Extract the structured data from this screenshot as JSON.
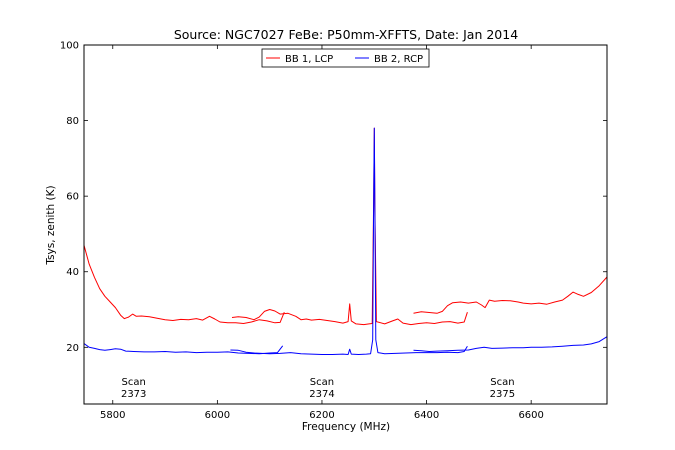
{
  "chart_data": {
    "type": "line",
    "title": "Source: NGC7027 FeBe: P50mm-XFFTS, Date: Jan 2014",
    "xlabel": "Frequency (MHz)",
    "ylabel": "Tsys, zenith (K)",
    "xlim": [
      5745,
      6745
    ],
    "ylim": [
      5,
      100
    ],
    "xticks": [
      5800,
      6000,
      6200,
      6400,
      6600
    ],
    "yticks": [
      20,
      40,
      60,
      80,
      100
    ],
    "grid": false,
    "legend_position": "top-center",
    "series": [
      {
        "name": "BB 1, LCP",
        "color": "#ff0000",
        "segments": [
          [
            [
              5745,
              47
            ],
            [
              5755,
              42
            ],
            [
              5765,
              38.5
            ],
            [
              5775,
              35.5
            ],
            [
              5785,
              33.5
            ],
            [
              5795,
              32
            ],
            [
              5805,
              30.5
            ],
            [
              5815,
              28.5
            ],
            [
              5822,
              27.6
            ],
            [
              5830,
              28
            ],
            [
              5838,
              28.8
            ],
            [
              5845,
              28.2
            ],
            [
              5855,
              28.3
            ],
            [
              5870,
              28.1
            ],
            [
              5885,
              27.7
            ],
            [
              5900,
              27.3
            ],
            [
              5915,
              27.1
            ],
            [
              5930,
              27.4
            ],
            [
              5945,
              27.3
            ],
            [
              5960,
              27.6
            ],
            [
              5972,
              27.2
            ],
            [
              5985,
              28.2
            ],
            [
              5995,
              27.5
            ],
            [
              6005,
              26.7
            ],
            [
              6020,
              26.5
            ],
            [
              6035,
              26.5
            ],
            [
              6050,
              26.3
            ],
            [
              6065,
              26.7
            ],
            [
              6080,
              27.3
            ],
            [
              6095,
              27
            ],
            [
              6110,
              26.5
            ],
            [
              6120,
              26.6
            ],
            [
              6128,
              29.3
            ]
          ],
          [
            [
              6028,
              27.9
            ],
            [
              6040,
              28.1
            ],
            [
              6055,
              27.9
            ],
            [
              6070,
              27.3
            ],
            [
              6080,
              28
            ],
            [
              6090,
              29.5
            ],
            [
              6100,
              30
            ],
            [
              6110,
              29.6
            ],
            [
              6120,
              28.8
            ],
            [
              6135,
              29
            ],
            [
              6150,
              28.2
            ],
            [
              6160,
              27.3
            ],
            [
              6170,
              27.5
            ],
            [
              6180,
              27.2
            ],
            [
              6195,
              27.4
            ],
            [
              6210,
              27.1
            ],
            [
              6225,
              26.8
            ],
            [
              6240,
              26.4
            ],
            [
              6250,
              26.8
            ],
            [
              6253,
              31.5
            ],
            [
              6256,
              27
            ],
            [
              6265,
              26.2
            ],
            [
              6280,
              26
            ],
            [
              6290,
              26.2
            ],
            [
              6296,
              26.3
            ],
            [
              6299,
              60
            ],
            [
              6300,
              78
            ],
            [
              6301,
              58
            ],
            [
              6304,
              26.8
            ],
            [
              6320,
              26.2
            ],
            [
              6335,
              27
            ],
            [
              6345,
              27.5
            ],
            [
              6355,
              26.4
            ],
            [
              6370,
              26
            ],
            [
              6385,
              26.3
            ],
            [
              6400,
              26.5
            ],
            [
              6415,
              26.3
            ],
            [
              6430,
              26.7
            ],
            [
              6445,
              26.8
            ],
            [
              6460,
              26.4
            ],
            [
              6472,
              26.7
            ],
            [
              6478,
              29.3
            ]
          ],
          [
            [
              6375,
              29
            ],
            [
              6390,
              29.4
            ],
            [
              6405,
              29.2
            ],
            [
              6420,
              29
            ],
            [
              6430,
              29.5
            ],
            [
              6440,
              31
            ],
            [
              6450,
              31.8
            ],
            [
              6465,
              32
            ],
            [
              6480,
              31.7
            ],
            [
              6495,
              32
            ],
            [
              6505,
              31.2
            ],
            [
              6512,
              30.5
            ],
            [
              6520,
              32.5
            ],
            [
              6530,
              32.2
            ],
            [
              6545,
              32.4
            ],
            [
              6560,
              32.3
            ],
            [
              6575,
              32
            ],
            [
              6585,
              31.7
            ],
            [
              6600,
              31.5
            ],
            [
              6615,
              31.7
            ],
            [
              6630,
              31.4
            ],
            [
              6645,
              32
            ],
            [
              6660,
              32.5
            ],
            [
              6670,
              33.5
            ],
            [
              6680,
              34.6
            ],
            [
              6690,
              34
            ],
            [
              6700,
              33.5
            ],
            [
              6715,
              34.5
            ],
            [
              6730,
              36.3
            ],
            [
              6745,
              38.6
            ]
          ]
        ]
      },
      {
        "name": "BB 2, RCP",
        "color": "#0000ff",
        "segments": [
          [
            [
              5745,
              21
            ],
            [
              5755,
              20
            ],
            [
              5765,
              19.7
            ],
            [
              5775,
              19.4
            ],
            [
              5785,
              19.2
            ],
            [
              5795,
              19.4
            ],
            [
              5805,
              19.6
            ],
            [
              5815,
              19.5
            ],
            [
              5825,
              19
            ],
            [
              5840,
              18.9
            ],
            [
              5860,
              18.8
            ],
            [
              5880,
              18.8
            ],
            [
              5900,
              18.9
            ],
            [
              5920,
              18.7
            ],
            [
              5940,
              18.8
            ],
            [
              5960,
              18.6
            ],
            [
              5980,
              18.7
            ],
            [
              6000,
              18.7
            ],
            [
              6020,
              18.8
            ],
            [
              6040,
              18.5
            ],
            [
              6060,
              18.4
            ],
            [
              6080,
              18.3
            ],
            [
              6100,
              18.5
            ],
            [
              6115,
              18.6
            ],
            [
              6125,
              20.4
            ]
          ],
          [
            [
              6025,
              19.3
            ],
            [
              6040,
              19.2
            ],
            [
              6055,
              18.7
            ],
            [
              6070,
              18.5
            ],
            [
              6085,
              18.4
            ],
            [
              6100,
              18.3
            ],
            [
              6120,
              18.4
            ],
            [
              6140,
              18.6
            ],
            [
              6160,
              18.3
            ],
            [
              6180,
              18.2
            ],
            [
              6200,
              18.1
            ],
            [
              6220,
              18.1
            ],
            [
              6240,
              18.2
            ],
            [
              6250,
              18.1
            ],
            [
              6253,
              19.5
            ],
            [
              6256,
              18.2
            ],
            [
              6270,
              18.1
            ],
            [
              6285,
              18.2
            ],
            [
              6293,
              18.3
            ],
            [
              6297,
              22
            ],
            [
              6299,
              60
            ],
            [
              6300,
              78
            ],
            [
              6301,
              60
            ],
            [
              6303,
              22
            ],
            [
              6307,
              18.6
            ],
            [
              6320,
              18.3
            ],
            [
              6340,
              18.4
            ],
            [
              6360,
              18.5
            ],
            [
              6380,
              18.6
            ],
            [
              6400,
              18.6
            ],
            [
              6420,
              18.6
            ],
            [
              6440,
              18.7
            ],
            [
              6460,
              18.6
            ],
            [
              6472,
              18.9
            ],
            [
              6478,
              20.3
            ]
          ],
          [
            [
              6375,
              19.2
            ],
            [
              6390,
              19.1
            ],
            [
              6405,
              18.9
            ],
            [
              6420,
              19
            ],
            [
              6440,
              19.1
            ],
            [
              6460,
              19.2
            ],
            [
              6480,
              19.3
            ],
            [
              6495,
              19.7
            ],
            [
              6510,
              20
            ],
            [
              6525,
              19.7
            ],
            [
              6545,
              19.8
            ],
            [
              6565,
              19.9
            ],
            [
              6585,
              19.9
            ],
            [
              6600,
              20
            ],
            [
              6620,
              20
            ],
            [
              6640,
              20.1
            ],
            [
              6660,
              20.3
            ],
            [
              6680,
              20.5
            ],
            [
              6700,
              20.6
            ],
            [
              6715,
              20.9
            ],
            [
              6730,
              21.5
            ],
            [
              6745,
              22.8
            ]
          ]
        ]
      }
    ],
    "annotations": [
      {
        "label": "Scan",
        "value": "2373",
        "x": 5840
      },
      {
        "label": "Scan",
        "value": "2374",
        "x": 6200
      },
      {
        "label": "Scan",
        "value": "2375",
        "x": 6545
      }
    ]
  }
}
